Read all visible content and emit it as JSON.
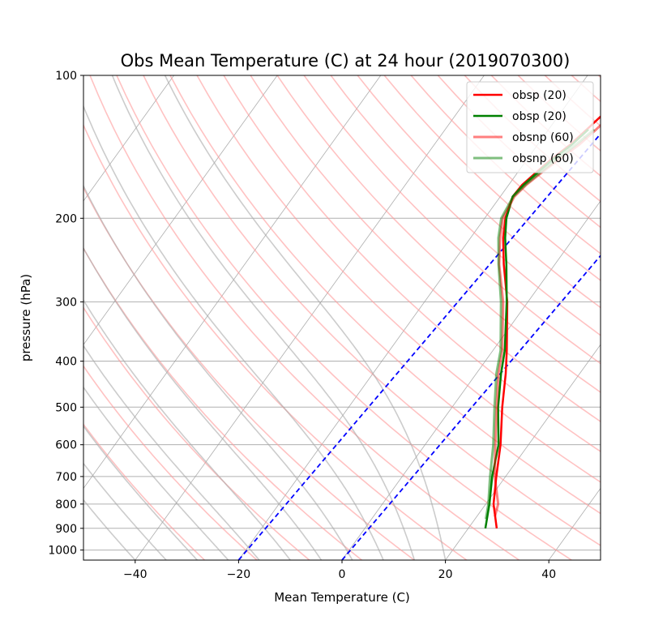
{
  "chart_data": {
    "type": "line",
    "title": "Obs Mean Temperature (C) at 24 hour (2019070300)",
    "xlabel": "Mean Temperature (C)",
    "ylabel": "pressure (hPa)",
    "xlim": [
      -50,
      50
    ],
    "ylim": [
      1050,
      100
    ],
    "y_scale": "log",
    "x_ticks": [
      -40,
      -20,
      0,
      20,
      40
    ],
    "y_ticks": [
      100,
      200,
      300,
      400,
      500,
      600,
      700,
      800,
      900,
      1000
    ],
    "grid": "horizontal",
    "legend_position": "top-right",
    "series": [
      {
        "name": "obsp (20)",
        "color": "#ff0000",
        "opacity": 1,
        "width": 2.5,
        "points": [
          [
            25.5,
            900
          ],
          [
            21.5,
            800
          ],
          [
            18.2,
            700
          ],
          [
            14.6,
            600
          ],
          [
            9.7,
            500
          ],
          [
            5.7,
            425
          ],
          [
            2.7,
            380
          ],
          [
            -4,
            300
          ],
          [
            -9.9,
            250
          ],
          [
            -13.7,
            220
          ],
          [
            -16,
            200
          ],
          [
            -17.6,
            180
          ],
          [
            -17.4,
            170
          ],
          [
            -16.4,
            160
          ],
          [
            -15.3,
            150
          ],
          [
            -13.7,
            140
          ],
          [
            -12.6,
            130
          ],
          [
            -11.5,
            120
          ],
          [
            -10.5,
            110
          ],
          [
            -9.4,
            100
          ]
        ]
      },
      {
        "name": "obsp (20)",
        "color": "#008000",
        "opacity": 1,
        "width": 2.5,
        "points": [
          [
            23.3,
            900
          ],
          [
            20.7,
            800
          ],
          [
            17.4,
            700
          ],
          [
            14.2,
            600
          ],
          [
            8.9,
            500
          ],
          [
            4.8,
            425
          ],
          [
            2.3,
            380
          ],
          [
            -4.1,
            300
          ],
          [
            -9.4,
            250
          ],
          [
            -13.3,
            220
          ],
          [
            -15.8,
            200
          ],
          [
            -17.6,
            180
          ],
          [
            -17.1,
            170
          ],
          [
            -16.1,
            160
          ],
          [
            -15.0,
            150
          ],
          [
            -13.4,
            140
          ],
          [
            -12.3,
            130
          ]
        ]
      },
      {
        "name": "obsnp (60)",
        "color": "#ff0000",
        "opacity": 0.5,
        "width": 3,
        "points": [
          [
            23.5,
            850
          ],
          [
            22.4,
            800
          ],
          [
            17.9,
            700
          ],
          [
            13.6,
            600
          ],
          [
            8.6,
            500
          ],
          [
            4.3,
            425
          ],
          [
            1.8,
            380
          ],
          [
            -4.8,
            300
          ],
          [
            -10.8,
            250
          ],
          [
            -14.3,
            220
          ],
          [
            -16.5,
            200
          ],
          [
            -17.3,
            180
          ],
          [
            -16.6,
            170
          ],
          [
            -15.3,
            160
          ],
          [
            -13.8,
            150
          ],
          [
            -12.0,
            140
          ],
          [
            -10.8,
            130
          ],
          [
            -9.7,
            120
          ],
          [
            -8.9,
            110
          ],
          [
            -8.1,
            100
          ]
        ]
      },
      {
        "name": "obsnp (60)",
        "color": "#008000",
        "opacity": 0.5,
        "width": 3,
        "points": [
          [
            22.1,
            860
          ],
          [
            20.5,
            800
          ],
          [
            17.0,
            700
          ],
          [
            13.2,
            600
          ],
          [
            8.2,
            500
          ],
          [
            3.9,
            425
          ],
          [
            1.5,
            380
          ],
          [
            -5.2,
            300
          ],
          [
            -10.9,
            250
          ],
          [
            -14.6,
            220
          ],
          [
            -16.8,
            200
          ],
          [
            -17.5,
            180
          ],
          [
            -16.8,
            170
          ],
          [
            -15.6,
            160
          ],
          [
            -14.2,
            150
          ],
          [
            -12.6,
            140
          ],
          [
            -11.2,
            130
          ]
        ]
      }
    ],
    "reference_lines": {
      "mixing_ratio_dashed_color": "#0000ff",
      "isotherm_color": "#999999",
      "dry_adiabat_color": "#ff9a9a",
      "moist_adiabat_color": "#aaaaaa"
    }
  }
}
